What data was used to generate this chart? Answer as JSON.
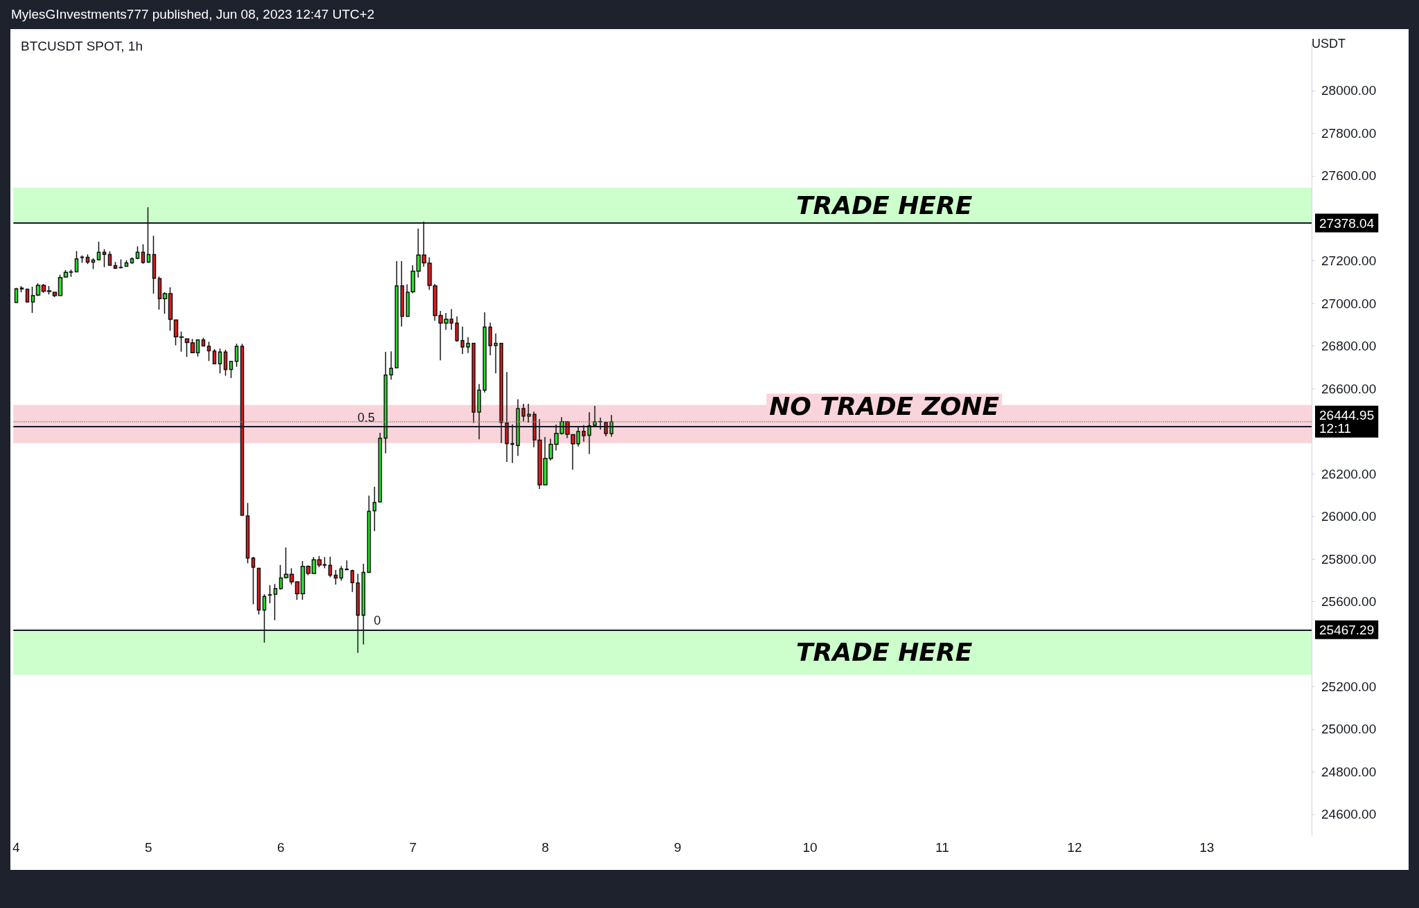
{
  "chart_data": {
    "type": "candlestick",
    "title": "BTCUSDT SPOT, 1h",
    "subtitle": "MylesGInvestments777 published, Jun 08, 2023 12:47 UTC+2",
    "ylabel": "USDT",
    "x": [
      "2023-06-04T00:00",
      "2023-06-04T01:00",
      "2023-06-04T02:00",
      "2023-06-04T03:00",
      "2023-06-04T04:00",
      "2023-06-04T05:00",
      "2023-06-04T06:00",
      "2023-06-04T07:00",
      "2023-06-04T08:00",
      "2023-06-04T09:00",
      "2023-06-04T10:00",
      "2023-06-04T11:00",
      "2023-06-04T12:00",
      "2023-06-04T13:00",
      "2023-06-04T14:00",
      "2023-06-04T15:00",
      "2023-06-04T16:00",
      "2023-06-04T17:00",
      "2023-06-04T18:00",
      "2023-06-04T19:00",
      "2023-06-04T20:00",
      "2023-06-04T21:00",
      "2023-06-04T22:00",
      "2023-06-04T23:00",
      "2023-06-05T00:00",
      "2023-06-05T01:00",
      "2023-06-05T02:00",
      "2023-06-05T03:00",
      "2023-06-05T04:00",
      "2023-06-05T05:00",
      "2023-06-05T06:00",
      "2023-06-05T07:00",
      "2023-06-05T08:00",
      "2023-06-05T09:00",
      "2023-06-05T10:00",
      "2023-06-05T11:00",
      "2023-06-05T12:00",
      "2023-06-05T13:00",
      "2023-06-05T14:00",
      "2023-06-05T15:00",
      "2023-06-05T16:00",
      "2023-06-05T17:00",
      "2023-06-05T18:00",
      "2023-06-05T19:00",
      "2023-06-05T20:00",
      "2023-06-05T21:00",
      "2023-06-05T22:00",
      "2023-06-05T23:00",
      "2023-06-06T00:00",
      "2023-06-06T01:00",
      "2023-06-06T02:00",
      "2023-06-06T03:00",
      "2023-06-06T04:00",
      "2023-06-06T05:00",
      "2023-06-06T06:00",
      "2023-06-06T07:00",
      "2023-06-06T08:00",
      "2023-06-06T09:00",
      "2023-06-06T10:00",
      "2023-06-06T11:00",
      "2023-06-06T12:00",
      "2023-06-06T13:00",
      "2023-06-06T14:00",
      "2023-06-06T15:00",
      "2023-06-06T16:00",
      "2023-06-06T17:00",
      "2023-06-06T18:00",
      "2023-06-06T19:00",
      "2023-06-06T20:00",
      "2023-06-06T21:00",
      "2023-06-06T22:00",
      "2023-06-06T23:00",
      "2023-06-07T00:00",
      "2023-06-07T01:00",
      "2023-06-07T02:00",
      "2023-06-07T03:00",
      "2023-06-07T04:00",
      "2023-06-07T05:00",
      "2023-06-07T06:00",
      "2023-06-07T07:00",
      "2023-06-07T08:00",
      "2023-06-07T09:00",
      "2023-06-07T10:00",
      "2023-06-07T11:00",
      "2023-06-07T12:00",
      "2023-06-07T13:00",
      "2023-06-07T14:00",
      "2023-06-07T15:00",
      "2023-06-07T16:00",
      "2023-06-07T17:00",
      "2023-06-07T18:00",
      "2023-06-07T19:00",
      "2023-06-07T20:00",
      "2023-06-07T21:00",
      "2023-06-07T22:00",
      "2023-06-07T23:00",
      "2023-06-08T00:00",
      "2023-06-08T01:00",
      "2023-06-08T02:00",
      "2023-06-08T03:00",
      "2023-06-08T04:00",
      "2023-06-08T05:00",
      "2023-06-08T06:00",
      "2023-06-08T07:00",
      "2023-06-08T08:00",
      "2023-06-08T09:00",
      "2023-06-08T10:00",
      "2023-06-08T11:00",
      "2023-06-08T12:00"
    ],
    "ohlc": [
      [
        27005,
        27074,
        27003,
        27069
      ],
      [
        27068,
        27082,
        27053,
        27072
      ],
      [
        27067,
        27070,
        27005,
        27007
      ],
      [
        27007,
        27079,
        26956,
        27037
      ],
      [
        27040,
        27095,
        27035,
        27085
      ],
      [
        27085,
        27092,
        27050,
        27058
      ],
      [
        27059,
        27082,
        27042,
        27057
      ],
      [
        27053,
        27053,
        27030,
        27037
      ],
      [
        27037,
        27135,
        27035,
        27122
      ],
      [
        27124,
        27157,
        27122,
        27146
      ],
      [
        27147,
        27159,
        27125,
        27149
      ],
      [
        27149,
        27246,
        27147,
        27210
      ],
      [
        27216,
        27226,
        27191,
        27218
      ],
      [
        27217,
        27231,
        27185,
        27194
      ],
      [
        27194,
        27212,
        27162,
        27204
      ],
      [
        27206,
        27290,
        27202,
        27241
      ],
      [
        27241,
        27255,
        27171,
        27231
      ],
      [
        27230,
        27245,
        27178,
        27180
      ],
      [
        27178,
        27195,
        27162,
        27166
      ],
      [
        27170,
        27207,
        27165,
        27168
      ],
      [
        27175,
        27203,
        27172,
        27191
      ],
      [
        27191,
        27217,
        27187,
        27210
      ],
      [
        27212,
        27268,
        27208,
        27241
      ],
      [
        27241,
        27278,
        27187,
        27193
      ],
      [
        27194,
        27452,
        27191,
        27230
      ],
      [
        27230,
        27318,
        27046,
        27119
      ],
      [
        27117,
        27127,
        26971,
        27023
      ],
      [
        27023,
        27053,
        26952,
        27046
      ],
      [
        27046,
        27076,
        26872,
        26926
      ],
      [
        26923,
        26923,
        26804,
        26844
      ],
      [
        26843,
        26868,
        26774,
        26841
      ],
      [
        26834,
        26834,
        26749,
        26817
      ],
      [
        26815,
        26834,
        26769,
        26769
      ],
      [
        26769,
        26829,
        26751,
        26829
      ],
      [
        26829,
        26839,
        26801,
        26801
      ],
      [
        26799,
        26820,
        26730,
        26778
      ],
      [
        26776,
        26786,
        26717,
        26717
      ],
      [
        26717,
        26788,
        26672,
        26772
      ],
      [
        26772,
        26783,
        26661,
        26690
      ],
      [
        26690,
        26728,
        26650,
        26728
      ],
      [
        26728,
        26811,
        26703,
        26799
      ],
      [
        26799,
        26810,
        26005,
        26005
      ],
      [
        26002,
        26063,
        25780,
        25804
      ],
      [
        25804,
        25810,
        25587,
        25761
      ],
      [
        25756,
        25756,
        25539,
        25560
      ],
      [
        25560,
        25634,
        25407,
        25624
      ],
      [
        25630,
        25677,
        25592,
        25632
      ],
      [
        25634,
        25682,
        25512,
        25661
      ],
      [
        25661,
        25772,
        25655,
        25711
      ],
      [
        25712,
        25854,
        25708,
        25728
      ],
      [
        25728,
        25756,
        25680,
        25693
      ],
      [
        25693,
        25693,
        25608,
        25637
      ],
      [
        25637,
        25790,
        25608,
        25765
      ],
      [
        25765,
        25770,
        25724,
        25733
      ],
      [
        25732,
        25809,
        25730,
        25796
      ],
      [
        25796,
        25814,
        25761,
        25772
      ],
      [
        25773,
        25809,
        25756,
        25771
      ],
      [
        25770,
        25811,
        25714,
        25724
      ],
      [
        25724,
        25748,
        25680,
        25711
      ],
      [
        25711,
        25767,
        25698,
        25754
      ],
      [
        25750,
        25793,
        25748,
        25752
      ],
      [
        25745,
        25750,
        25645,
        25689
      ],
      [
        25687,
        25730,
        25359,
        25536
      ],
      [
        25536,
        25777,
        25398,
        25737
      ],
      [
        25737,
        26098,
        25737,
        26024
      ],
      [
        26026,
        26139,
        25931,
        26065
      ],
      [
        26068,
        26392,
        26068,
        26367
      ],
      [
        26368,
        26773,
        26296,
        26664
      ],
      [
        26665,
        26775,
        26642,
        26696
      ],
      [
        26698,
        27199,
        26698,
        27083
      ],
      [
        27083,
        27199,
        26892,
        26940
      ],
      [
        26940,
        27090,
        26937,
        27053
      ],
      [
        27055,
        27180,
        27048,
        27152
      ],
      [
        27152,
        27352,
        27122,
        27228
      ],
      [
        27228,
        27385,
        27173,
        27191
      ],
      [
        27189,
        27217,
        27064,
        27085
      ],
      [
        27083,
        27092,
        26919,
        26944
      ],
      [
        26944,
        26965,
        26733,
        26908
      ],
      [
        26908,
        26955,
        26876,
        26926
      ],
      [
        26926,
        26974,
        26876,
        26908
      ],
      [
        26908,
        26940,
        26820,
        26826
      ],
      [
        26826,
        26892,
        26762,
        26796
      ],
      [
        26796,
        26842,
        26767,
        26813
      ],
      [
        26813,
        26813,
        26439,
        26490
      ],
      [
        26490,
        26622,
        26362,
        26593
      ],
      [
        26593,
        26958,
        26582,
        26889
      ],
      [
        26889,
        26910,
        26757,
        26802
      ],
      [
        26803,
        26859,
        26672,
        26813
      ],
      [
        26813,
        26813,
        26344,
        26441
      ],
      [
        26439,
        26678,
        26256,
        26342
      ],
      [
        26342,
        26432,
        26251,
        26339
      ],
      [
        26333,
        26550,
        26284,
        26506
      ],
      [
        26506,
        26529,
        26447,
        26471
      ],
      [
        26471,
        26529,
        26441,
        26479
      ],
      [
        26479,
        26492,
        26325,
        26360
      ],
      [
        26358,
        26457,
        26129,
        26148
      ],
      [
        26148,
        26373,
        26146,
        26272
      ],
      [
        26272,
        26365,
        26262,
        26339
      ],
      [
        26339,
        26431,
        26309,
        26390
      ],
      [
        26390,
        26466,
        26384,
        26445
      ],
      [
        26445,
        26445,
        26368,
        26386
      ],
      [
        26384,
        26384,
        26219,
        26341
      ],
      [
        26341,
        26421,
        26328,
        26399
      ],
      [
        26400,
        26429,
        26351,
        26379
      ],
      [
        26381,
        26489,
        26293,
        26426
      ],
      [
        26428,
        26519,
        26421,
        26445
      ],
      [
        26445,
        26464,
        26408,
        26444
      ],
      [
        26442,
        26442,
        26376,
        26389
      ],
      [
        26389,
        26476,
        26374,
        26444.95
      ]
    ],
    "xlim": [
      "2023-06-03T23:30",
      "2023-06-13T19:00"
    ],
    "xticks": [
      {
        "value": "2023-06-04",
        "label": "4"
      },
      {
        "value": "2023-06-05",
        "label": "5"
      },
      {
        "value": "2023-06-06",
        "label": "6"
      },
      {
        "value": "2023-06-07",
        "label": "7"
      },
      {
        "value": "2023-06-08",
        "label": "8"
      },
      {
        "value": "2023-06-09",
        "label": "9"
      },
      {
        "value": "2023-06-10",
        "label": "10"
      },
      {
        "value": "2023-06-11",
        "label": "11"
      },
      {
        "value": "2023-06-12",
        "label": "12"
      },
      {
        "value": "2023-06-13",
        "label": "13"
      }
    ],
    "ylim": [
      24502,
      28224
    ],
    "yticks": [
      {
        "value": 24600,
        "label": "24600.00"
      },
      {
        "value": 24800,
        "label": "24800.00"
      },
      {
        "value": 25000,
        "label": "25000.00"
      },
      {
        "value": 25200,
        "label": "25200.00"
      },
      {
        "value": 25600,
        "label": "25600.00"
      },
      {
        "value": 25800,
        "label": "25800.00"
      },
      {
        "value": 26000,
        "label": "26000.00"
      },
      {
        "value": 26200,
        "label": "26200.00"
      },
      {
        "value": 26600,
        "label": "26600.00"
      },
      {
        "value": 26800,
        "label": "26800.00"
      },
      {
        "value": 27000,
        "label": "27000.00"
      },
      {
        "value": 27200,
        "label": "27200.00"
      },
      {
        "value": 27600,
        "label": "27600.00"
      },
      {
        "value": 27800,
        "label": "27800.00"
      },
      {
        "value": 28000,
        "label": "28000.00"
      }
    ],
    "bands": [
      {
        "axis": "y",
        "from": 27378.04,
        "to": 27544,
        "label": "TRADE HERE",
        "color": "#ccffcc"
      },
      {
        "axis": "y",
        "from": 26344,
        "to": 26523,
        "label": "NO TRADE ZONE",
        "color": "#f9d4da"
      },
      {
        "axis": "y",
        "from": 25257,
        "to": 25467.29,
        "label": "TRADE HERE",
        "color": "#ccffcc"
      }
    ],
    "ref_lines": [
      {
        "axis": "y",
        "value": 27378.04,
        "label": "27378.04",
        "color": "#131722",
        "line_style": "solid"
      },
      {
        "axis": "y",
        "value": 25467.29,
        "label": "25467.29",
        "color": "#131722",
        "line_style": "solid"
      },
      {
        "axis": "y",
        "value": 26444.95,
        "label": "26444.95\n12:11",
        "color": "#888888",
        "line_style": "dotted"
      },
      {
        "axis": "y",
        "value": 26422.67,
        "label": null,
        "color": "#131722",
        "line_style": "solid"
      }
    ],
    "annotations": [
      {
        "text": "0.5",
        "x": "2023-06-06T15:30",
        "y": 26422.67
      },
      {
        "text": "0",
        "x": "2023-06-06T17:30",
        "y": 25467.29
      }
    ]
  }
}
